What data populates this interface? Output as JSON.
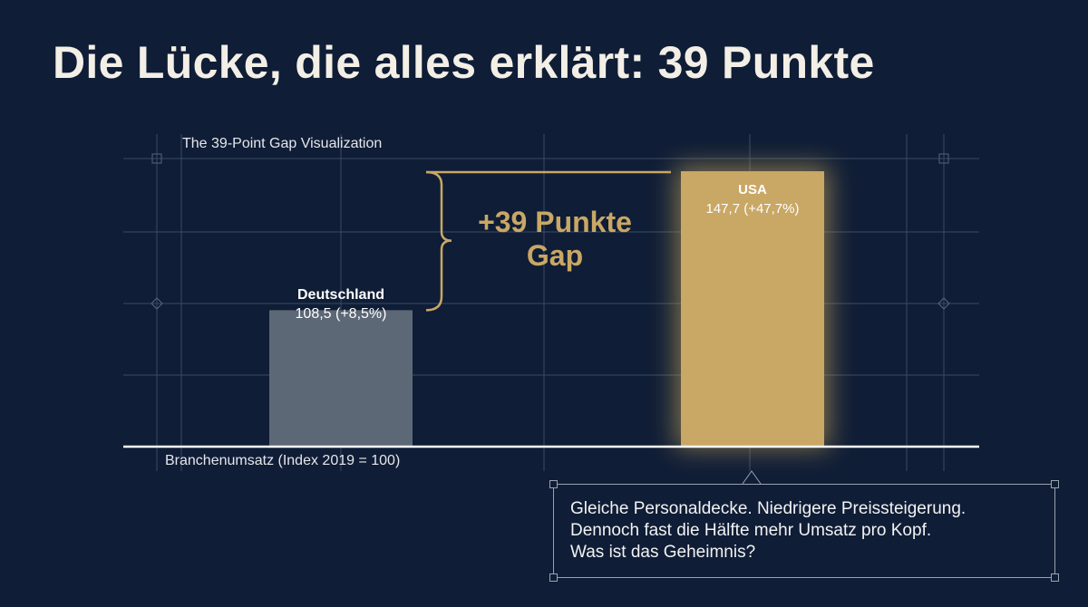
{
  "title": "Die Lücke, die alles erklärt: 39 Punkte",
  "annotation": {
    "gap_line1": "+39 Punkte",
    "gap_line2": "Gap"
  },
  "callout": {
    "line1": "Gleiche Personaldecke. Niedrigere Preissteigerung.",
    "line2": "Dennoch fast die Hälfte mehr Umsatz pro Kopf.",
    "line3": "Was ist das Geheimnis?"
  },
  "colors": {
    "background": "#0f1d36",
    "germany_bar": "#5d6876",
    "usa_bar": "#c9a765",
    "accent_text": "#c9a765",
    "grid": "#3a4a63"
  },
  "chart_data": {
    "type": "bar",
    "title": "The 39-Point Gap Visualization",
    "xlabel": "Branchenumsatz (Index 2019 = 100)",
    "ylabel": "",
    "categories": [
      "Deutschland",
      "USA"
    ],
    "values": [
      108.5,
      147.7
    ],
    "value_labels": [
      "108,5 (+8,5%)",
      "147,7 (+47,7%)"
    ],
    "ylim": [
      70,
      150
    ],
    "gap": 39,
    "grid": true,
    "legend": "none"
  }
}
